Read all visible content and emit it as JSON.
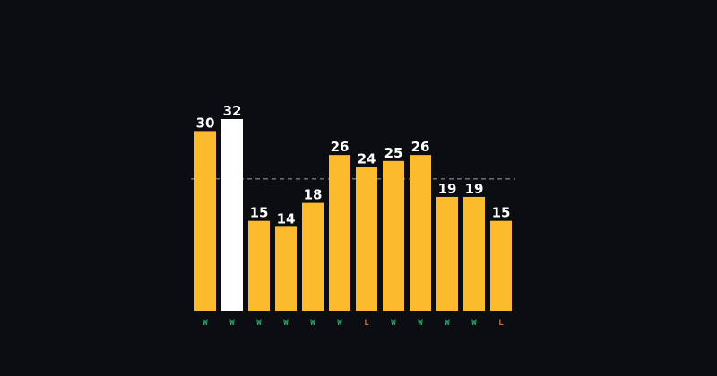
{
  "chart_data": {
    "type": "bar",
    "title": "",
    "xlabel": "",
    "ylabel": "",
    "ylim": [
      0,
      32
    ],
    "values": [
      30,
      32,
      15,
      14,
      18,
      26,
      24,
      25,
      26,
      19,
      19,
      15
    ],
    "results": [
      "W",
      "W",
      "W",
      "W",
      "W",
      "W",
      "L",
      "W",
      "W",
      "W",
      "W",
      "L"
    ],
    "highlight_index": 1,
    "reference_line": 22,
    "grid": false,
    "colors": {
      "background": "#0b0d12",
      "bar": "#fbbb2c",
      "highlight_bar": "#ffffff",
      "value_label": "#ffffff",
      "win": "#2fa86a",
      "loss": "#e0662c",
      "reference_line": "#c8c8c8"
    }
  }
}
